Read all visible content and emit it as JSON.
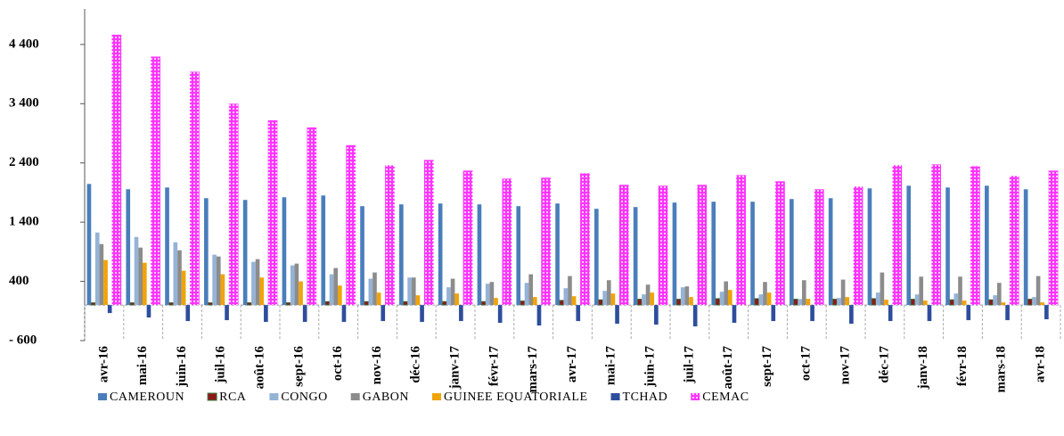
{
  "chart_data": {
    "type": "bar",
    "categories": [
      "avr-16",
      "mai-16",
      "juin-16",
      "juil-16",
      "août-16",
      "sept-16",
      "oct-16",
      "nov-16",
      "déc-16",
      "janv-17",
      "févr-17",
      "mars-17",
      "avr-17",
      "mai-17",
      "juin-17",
      "juil-17",
      "août-17",
      "sept-17",
      "oct-17",
      "nov-17",
      "déc-17",
      "janv-18",
      "févr-18",
      "mars-18",
      "avr-18"
    ],
    "series": [
      {
        "name": "CAMEROUN",
        "color": "#4a7ebb",
        "values": [
          2045,
          1955,
          1985,
          1805,
          1775,
          1820,
          1850,
          1670,
          1700,
          1715,
          1700,
          1670,
          1715,
          1625,
          1655,
          1730,
          1745,
          1745,
          1790,
          1805,
          1970,
          2015,
          1985,
          2015,
          1955
        ]
      },
      {
        "name": "RCA",
        "color": "#8b1a1a",
        "values": [
          40,
          40,
          40,
          40,
          40,
          40,
          60,
          60,
          60,
          60,
          60,
          70,
          80,
          90,
          100,
          100,
          110,
          110,
          100,
          100,
          110,
          100,
          90,
          90,
          100
        ]
      },
      {
        "name": "CONGO",
        "color": "#95b3d7",
        "values": [
          1225,
          1150,
          1060,
          850,
          730,
          670,
          520,
          445,
          465,
          300,
          360,
          375,
          285,
          240,
          180,
          300,
          225,
          180,
          100,
          120,
          210,
          180,
          195,
          165,
          135
        ]
      },
      {
        "name": "GABON",
        "color": "#8c8c8c",
        "values": [
          1030,
          970,
          925,
          820,
          775,
          700,
          625,
          550,
          465,
          445,
          390,
          520,
          490,
          420,
          345,
          315,
          400,
          390,
          420,
          430,
          550,
          480,
          480,
          375,
          490
        ]
      },
      {
        "name": "GUINEE EQUATORIALE",
        "color": "#f0a30a",
        "values": [
          760,
          715,
          580,
          520,
          465,
          400,
          330,
          210,
          165,
          195,
          120,
          135,
          150,
          195,
          210,
          135,
          255,
          210,
          105,
          135,
          90,
          75,
          75,
          45,
          45
        ]
      },
      {
        "name": "TCHAD",
        "color": "#2e4d9c",
        "values": [
          -135,
          -210,
          -270,
          -255,
          -285,
          -285,
          -285,
          -270,
          -285,
          -270,
          -300,
          -345,
          -270,
          -315,
          -330,
          -360,
          -300,
          -270,
          -270,
          -315,
          -270,
          -270,
          -255,
          -255,
          -240
        ]
      },
      {
        "name": "CEMAC",
        "color": "#ff33ff",
        "values": [
          4565,
          4195,
          3940,
          3400,
          3120,
          3000,
          2700,
          2360,
          2450,
          2270,
          2135,
          2150,
          2225,
          2030,
          2015,
          2030,
          2195,
          2090,
          1955,
          2000,
          2360,
          2375,
          2345,
          2180,
          2270
        ]
      }
    ],
    "ylim": [
      -600,
      5000
    ],
    "yticks": [
      {
        "value": -600,
        "label": "- 600"
      },
      400,
      {
        "value": 1400,
        "label": "1 400"
      },
      {
        "value": 2400,
        "label": "2 400"
      },
      {
        "value": 3400,
        "label": "3 400"
      },
      {
        "value": 4400,
        "label": "4 400"
      }
    ]
  }
}
